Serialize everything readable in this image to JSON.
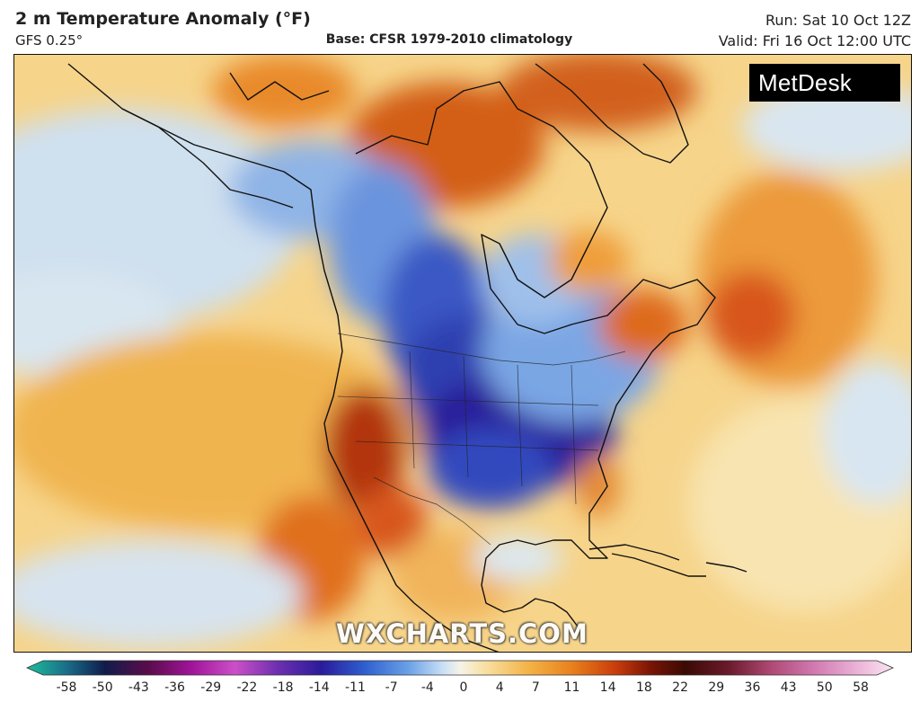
{
  "header": {
    "title": "2 m Temperature Anomaly (°F)",
    "model": "GFS 0.25°",
    "base": "Base: CFSR 1979-2010 climatology",
    "run": "Run: Sat 10 Oct 12Z",
    "valid": "Valid: Fri 16 Oct 12:00 UTC"
  },
  "logo": {
    "text": "MetDesk",
    "icon": "metdesk-star-icon"
  },
  "watermark": "WXCHARTS.COM",
  "colorbar": {
    "ticks": [
      "-58",
      "-50",
      "-43",
      "-36",
      "-29",
      "-22",
      "-18",
      "-14",
      "-11",
      "-7",
      "-4",
      "0",
      "4",
      "7",
      "11",
      "14",
      "18",
      "22",
      "29",
      "36",
      "43",
      "50",
      "58"
    ],
    "colors": [
      "#1dbf9a",
      "#1a6f8a",
      "#101c4a",
      "#5a0c4a",
      "#a0149a",
      "#cc4fc8",
      "#6c2fb0",
      "#2a1b9a",
      "#2f5fd0",
      "#6aa0e6",
      "#c8dff5",
      "#f6f3e8",
      "#f8dfa0",
      "#f4b246",
      "#e8801c",
      "#c83c0c",
      "#7a1406",
      "#3a0a04",
      "#6a1a2c",
      "#b04a76",
      "#d27ab2",
      "#ecb4d8",
      "#fbe6f2"
    ]
  },
  "map": {
    "region": "North America",
    "palette": {
      "ocean_warm": "#f3c46a",
      "ocean_cool": "#cfe0ef",
      "cold_core": "#2a1b9a",
      "cold_mid": "#3f63cc",
      "cold_light": "#8fb4e6",
      "warm_hot": "#c8420f",
      "warm_mid": "#e8801c",
      "warm_light": "#f8dfa0",
      "coast": "#111111"
    }
  }
}
